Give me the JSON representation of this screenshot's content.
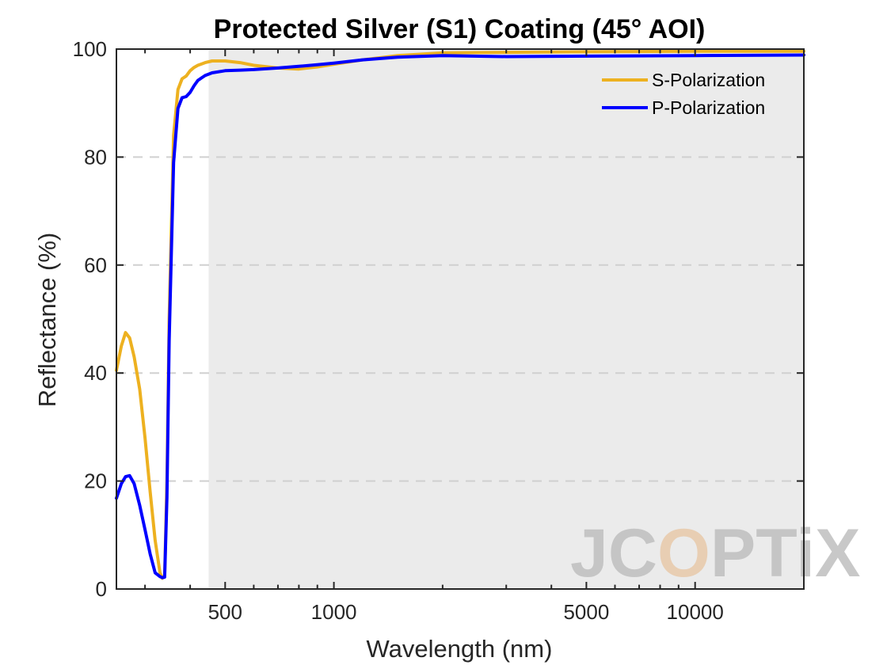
{
  "chart_data": {
    "type": "line",
    "title": "Protected Silver (S1) Coating  (45° AOI)",
    "xlabel": "Wavelength (nm)",
    "ylabel": "Reflectance (%)",
    "xscale": "log",
    "xlim": [
      250,
      20000
    ],
    "ylim": [
      0,
      100
    ],
    "xticks": [
      500,
      1000,
      5000,
      10000
    ],
    "xtick_labels": [
      "500",
      "1000",
      "5000",
      "10000"
    ],
    "yticks": [
      0,
      20,
      40,
      60,
      80,
      100
    ],
    "ytick_labels": [
      "0",
      "20",
      "40",
      "60",
      "80",
      "100"
    ],
    "grid": "horizontal dashed",
    "legend_position": "top-right",
    "shaded_region": {
      "x_start": 450,
      "x_end": 20000,
      "color": "#ebebeb"
    },
    "series": [
      {
        "name": "S-Polarization",
        "color": "#EDB120",
        "x": [
          250,
          258,
          265,
          272,
          280,
          290,
          300,
          310,
          320,
          330,
          335,
          340,
          345,
          350,
          360,
          370,
          380,
          390,
          400,
          410,
          420,
          440,
          460,
          500,
          550,
          600,
          700,
          800,
          900,
          1000,
          1200,
          1500,
          2000,
          3000,
          5000,
          10000,
          20000
        ],
        "y": [
          40.5,
          45,
          47.5,
          46.5,
          43,
          37,
          28,
          18,
          9,
          3,
          2,
          2.5,
          20,
          50,
          84,
          92.5,
          94.5,
          95,
          96,
          96.6,
          97,
          97.5,
          97.8,
          97.8,
          97.5,
          97,
          96.5,
          96.3,
          96.7,
          97.2,
          98,
          98.8,
          99.3,
          99.4,
          99.5,
          99.6,
          99.6
        ]
      },
      {
        "name": "P-Polarization",
        "color": "#0000FF",
        "x": [
          250,
          258,
          265,
          272,
          280,
          290,
          300,
          310,
          320,
          330,
          335,
          340,
          345,
          350,
          360,
          370,
          380,
          390,
          400,
          410,
          420,
          440,
          460,
          500,
          550,
          600,
          700,
          800,
          900,
          1000,
          1200,
          1500,
          2000,
          3000,
          5000,
          10000,
          20000
        ],
        "y": [
          16.8,
          19.5,
          20.8,
          21,
          19.5,
          15.5,
          11,
          6.5,
          3,
          2.3,
          2.1,
          2.2,
          17,
          46,
          79,
          89,
          91,
          91.2,
          92,
          93.2,
          94.2,
          95.1,
          95.6,
          96,
          96.1,
          96.2,
          96.5,
          96.8,
          97.1,
          97.4,
          98,
          98.5,
          98.8,
          98.6,
          98.7,
          98.8,
          98.9
        ]
      }
    ]
  },
  "watermark": {
    "text_left": "JC",
    "text_o": "O",
    "text_right": "PTiX",
    "color": "#bfbfbf",
    "accent": "#e8c9aa"
  }
}
